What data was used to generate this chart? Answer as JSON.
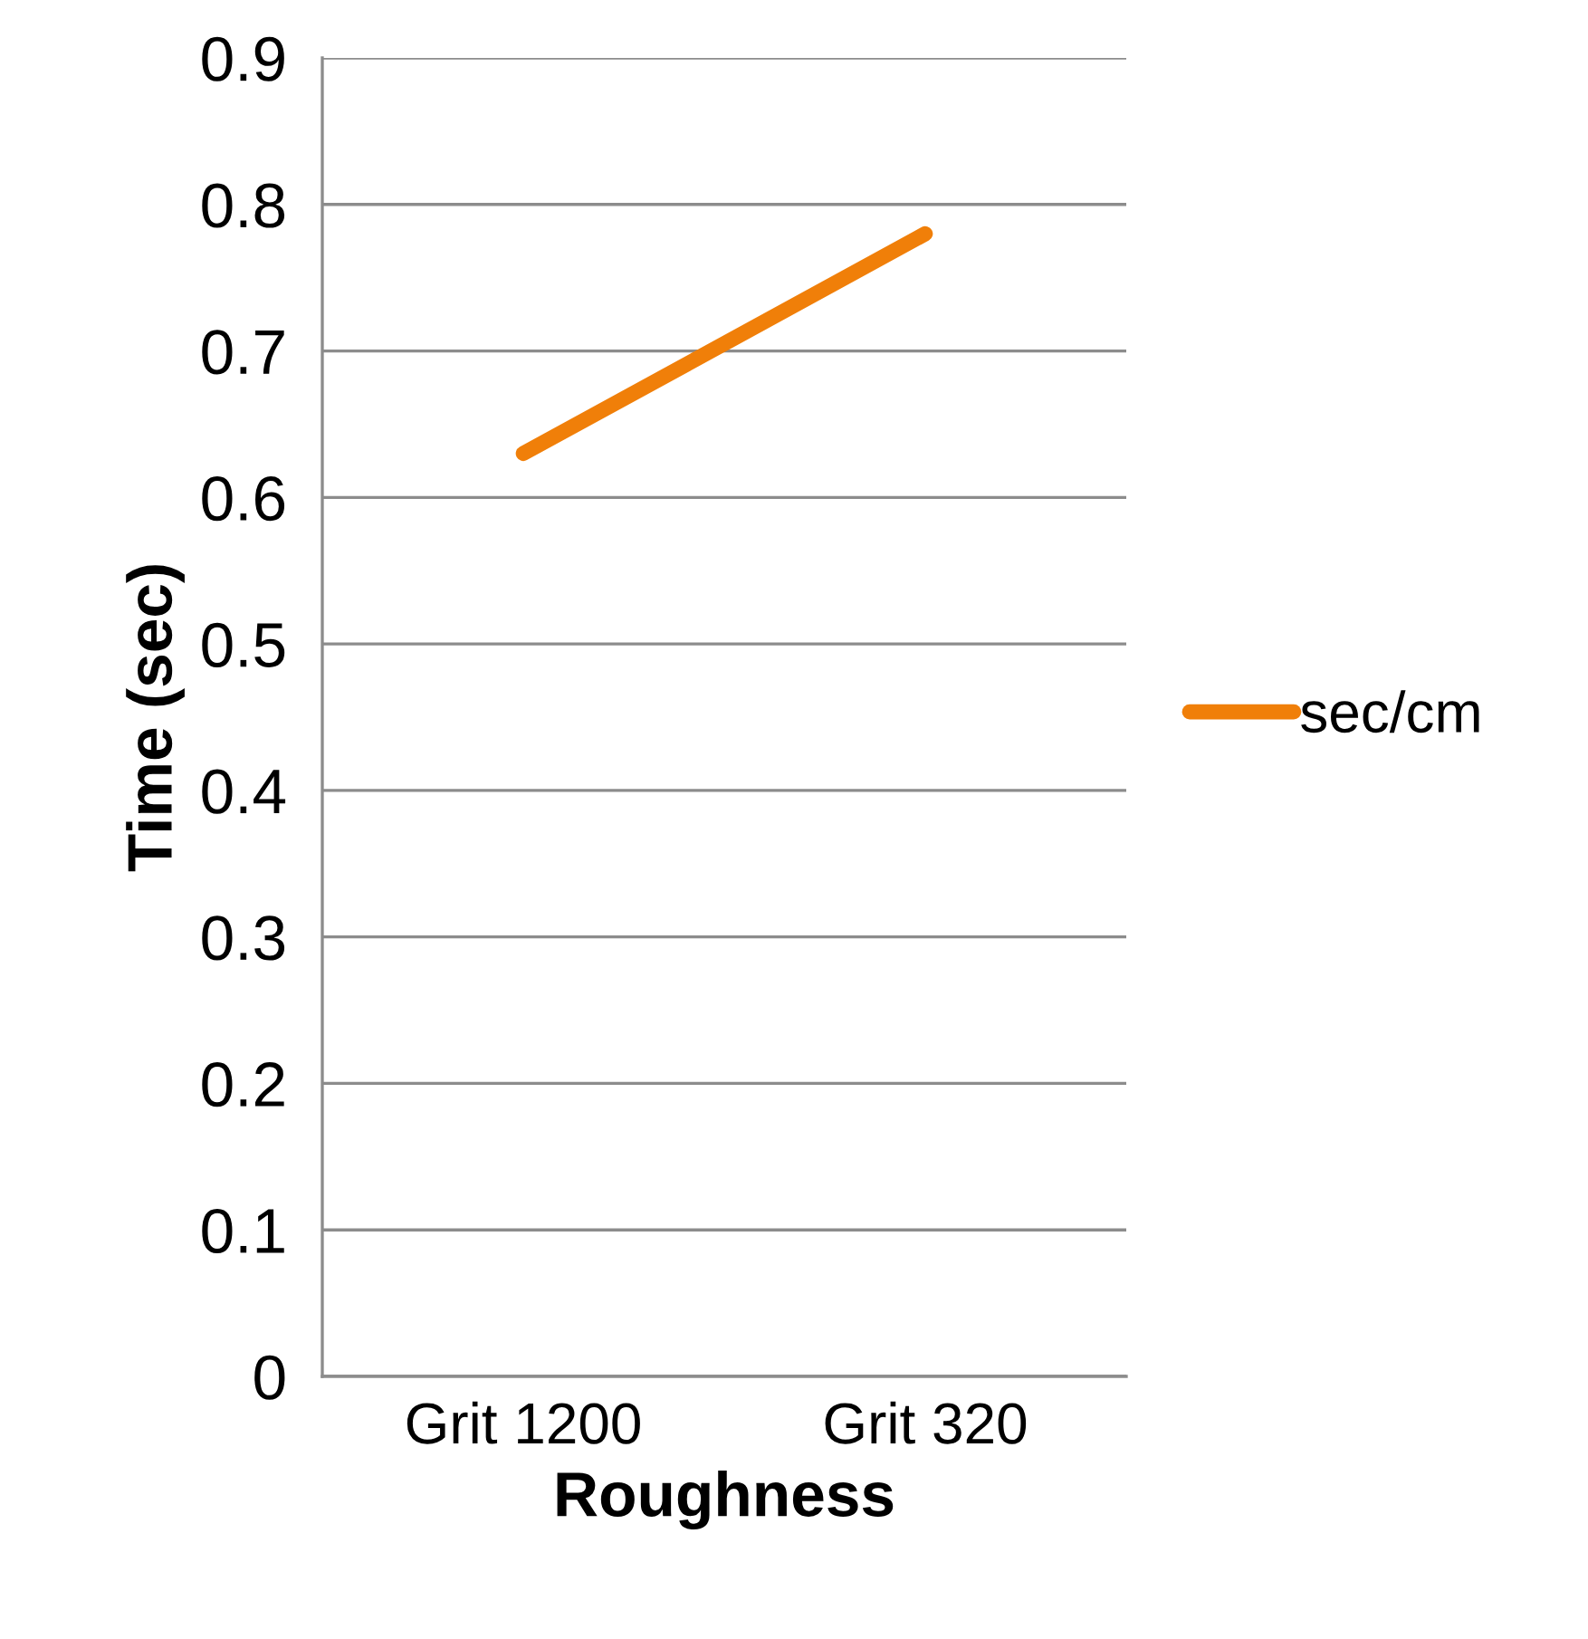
{
  "chart_data": {
    "type": "line",
    "xlabel": "Roughness",
    "ylabel": "Time (sec)",
    "categories": [
      "Grit 1200",
      "Grit 320"
    ],
    "series": [
      {
        "name": "sec/cm",
        "color": "#f07f09",
        "values": [
          0.63,
          0.78
        ]
      }
    ],
    "ylim": [
      0,
      0.9
    ],
    "yticks": [
      0,
      0.1,
      0.2,
      0.3,
      0.4,
      0.5,
      0.6,
      0.7,
      0.8,
      0.9
    ],
    "grid": "y",
    "legend": "right",
    "marker": "none",
    "line_style": "solid"
  }
}
